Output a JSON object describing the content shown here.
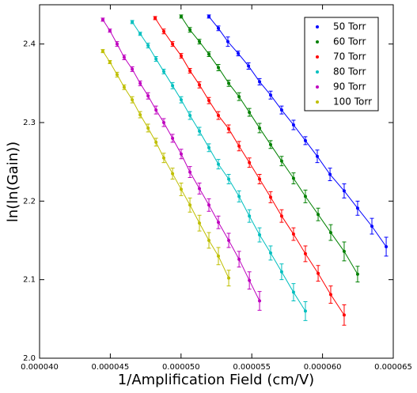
{
  "chart_data": {
    "type": "scatter",
    "xlabel": "1/Amplification Field (cm/V)",
    "ylabel": "ln(ln(Gain))",
    "xlim": [
      4e-05,
      6.5e-05
    ],
    "ylim": [
      2.0,
      2.45
    ],
    "xticks": [
      {
        "value": 4e-05,
        "label": "0.000040"
      },
      {
        "value": 4.5e-05,
        "label": "0.000045"
      },
      {
        "value": 5e-05,
        "label": "0.000050"
      },
      {
        "value": 5.5e-05,
        "label": "0.000055"
      },
      {
        "value": 6e-05,
        "label": "0.000060"
      },
      {
        "value": 6.5e-05,
        "label": "0.000065"
      }
    ],
    "yticks": [
      {
        "value": 2,
        "label": "2.0"
      },
      2.1,
      2.2,
      2.3,
      2.4
    ],
    "legend": "upper right",
    "series": [
      {
        "name": "50 Torr",
        "color": "#0000ff",
        "x": [
          5.197e-05,
          5.264e-05,
          5.331e-05,
          5.404e-05,
          5.477e-05,
          5.555e-05,
          5.633e-05,
          5.711e-05,
          5.795e-05,
          5.879e-05,
          5.963e-05,
          6.053e-05,
          6.153e-05,
          6.248e-05,
          6.349e-05,
          6.45e-05
        ],
        "values": [
          2.435,
          2.42,
          2.403,
          2.388,
          2.372,
          2.352,
          2.335,
          2.316,
          2.297,
          2.277,
          2.257,
          2.234,
          2.213,
          2.191,
          2.168,
          2.142
        ],
        "errors": [
          0.002,
          0.003,
          0.006,
          0.003,
          0.004,
          0.004,
          0.005,
          0.005,
          0.006,
          0.005,
          0.008,
          0.008,
          0.009,
          0.009,
          0.01,
          0.012
        ]
      },
      {
        "name": "60 Torr",
        "color": "#008000",
        "x": [
          5.001e-05,
          5.063e-05,
          5.13e-05,
          5.197e-05,
          5.264e-05,
          5.337e-05,
          5.41e-05,
          5.483e-05,
          5.555e-05,
          5.633e-05,
          5.711e-05,
          5.795e-05,
          5.879e-05,
          5.969e-05,
          6.058e-05,
          6.153e-05,
          6.248e-05
        ],
        "values": [
          2.435,
          2.418,
          2.403,
          2.387,
          2.37,
          2.35,
          2.333,
          2.313,
          2.293,
          2.272,
          2.251,
          2.229,
          2.206,
          2.183,
          2.16,
          2.136,
          2.107
        ],
        "errors": [
          0.002,
          0.003,
          0.003,
          0.003,
          0.004,
          0.004,
          0.005,
          0.005,
          0.006,
          0.005,
          0.006,
          0.007,
          0.008,
          0.008,
          0.01,
          0.012,
          0.01
        ]
      },
      {
        "name": "70 Torr",
        "color": "#ff0000",
        "x": [
          4.817e-05,
          4.878e-05,
          4.94e-05,
          5.001e-05,
          5.063e-05,
          5.13e-05,
          5.197e-05,
          5.264e-05,
          5.337e-05,
          5.41e-05,
          5.483e-05,
          5.555e-05,
          5.633e-05,
          5.711e-05,
          5.795e-05,
          5.879e-05,
          5.969e-05,
          6.058e-05,
          6.153e-05
        ],
        "values": [
          2.433,
          2.416,
          2.4,
          2.385,
          2.366,
          2.348,
          2.328,
          2.309,
          2.292,
          2.27,
          2.249,
          2.228,
          2.205,
          2.181,
          2.158,
          2.133,
          2.108,
          2.081,
          2.055
        ],
        "errors": [
          0.002,
          0.003,
          0.003,
          0.003,
          0.003,
          0.004,
          0.004,
          0.005,
          0.005,
          0.006,
          0.006,
          0.006,
          0.007,
          0.008,
          0.008,
          0.01,
          0.01,
          0.011,
          0.013
        ]
      },
      {
        "name": "80 Torr",
        "color": "#00bfbf",
        "x": [
          4.655e-05,
          4.711e-05,
          4.767e-05,
          4.823e-05,
          4.878e-05,
          4.94e-05,
          5.001e-05,
          5.063e-05,
          5.13e-05,
          5.197e-05,
          5.264e-05,
          5.337e-05,
          5.41e-05,
          5.483e-05,
          5.555e-05,
          5.633e-05,
          5.711e-05,
          5.795e-05,
          5.879e-05
        ],
        "values": [
          2.428,
          2.413,
          2.398,
          2.381,
          2.365,
          2.347,
          2.329,
          2.309,
          2.289,
          2.268,
          2.247,
          2.228,
          2.206,
          2.181,
          2.157,
          2.134,
          2.11,
          2.084,
          2.06
        ],
        "errors": [
          0.002,
          0.002,
          0.003,
          0.003,
          0.003,
          0.004,
          0.004,
          0.005,
          0.005,
          0.005,
          0.006,
          0.006,
          0.007,
          0.008,
          0.009,
          0.009,
          0.01,
          0.011,
          0.012
        ]
      },
      {
        "name": "90 Torr",
        "color": "#bf00bf",
        "x": [
          4.447e-05,
          4.497e-05,
          4.548e-05,
          4.598e-05,
          4.655e-05,
          4.711e-05,
          4.767e-05,
          4.823e-05,
          4.878e-05,
          4.94e-05,
          5.001e-05,
          5.063e-05,
          5.13e-05,
          5.197e-05,
          5.264e-05,
          5.337e-05,
          5.41e-05,
          5.483e-05,
          5.555e-05
        ],
        "values": [
          2.431,
          2.417,
          2.4,
          2.383,
          2.368,
          2.35,
          2.334,
          2.316,
          2.3,
          2.28,
          2.26,
          2.237,
          2.216,
          2.195,
          2.173,
          2.15,
          2.126,
          2.099,
          2.073
        ],
        "errors": [
          0.002,
          0.002,
          0.003,
          0.003,
          0.003,
          0.003,
          0.004,
          0.005,
          0.005,
          0.005,
          0.006,
          0.007,
          0.007,
          0.008,
          0.008,
          0.009,
          0.01,
          0.011,
          0.012
        ]
      },
      {
        "name": "100 Torr",
        "color": "#bfbf00",
        "x": [
          4.447e-05,
          4.497e-05,
          4.548e-05,
          4.598e-05,
          4.655e-05,
          4.711e-05,
          4.767e-05,
          4.823e-05,
          4.878e-05,
          4.94e-05,
          5.001e-05,
          5.063e-05,
          5.13e-05,
          5.197e-05,
          5.264e-05,
          5.337e-05
        ],
        "values": [
          2.391,
          2.377,
          2.361,
          2.345,
          2.329,
          2.31,
          2.293,
          2.275,
          2.255,
          2.235,
          2.215,
          2.195,
          2.172,
          2.15,
          2.13,
          2.102
        ],
        "errors": [
          0.002,
          0.002,
          0.003,
          0.003,
          0.004,
          0.004,
          0.005,
          0.005,
          0.006,
          0.007,
          0.008,
          0.009,
          0.01,
          0.01,
          0.011,
          0.01
        ]
      }
    ]
  }
}
